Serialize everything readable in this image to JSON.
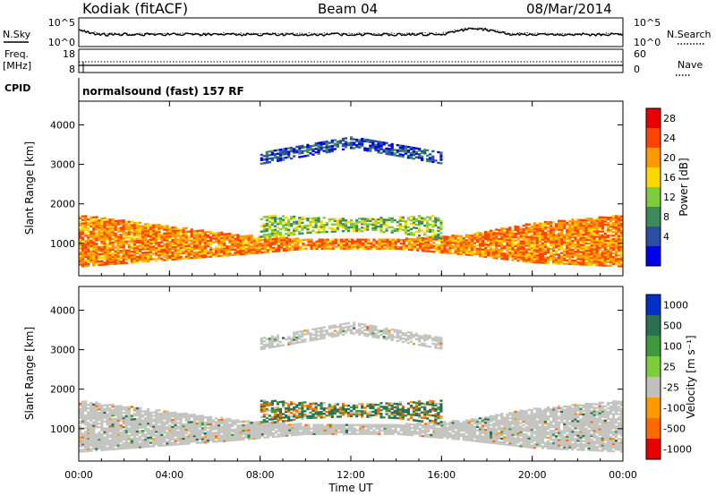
{
  "header": {
    "station": "Kodiak (fitACF)",
    "beam": "Beam 04",
    "date": "08/Mar/2014"
  },
  "top_panels": {
    "nsky_label": "N.Sky",
    "nsearch_label": "N.Search",
    "noise_ticks_left": [
      "10^5",
      "10^0"
    ],
    "noise_ticks_right": [
      "10^5",
      "10^0"
    ],
    "freq_label": "Freq.",
    "freq_unit": "[MHz]",
    "freq_ticks": [
      "18",
      "8"
    ],
    "nave_label": "Nave",
    "nave_ticks": [
      "60",
      "0"
    ],
    "cpid_label": "CPID",
    "cpid_value": "normalsound (fast) 157 RF"
  },
  "colors": {
    "power": [
      "#0000ee",
      "#2a4ea6",
      "#3c8c5a",
      "#7ccc3c",
      "#ffd700",
      "#ff9900",
      "#ff4500",
      "#e80000"
    ],
    "velocity": [
      "#0030c8",
      "#2a7050",
      "#3c9a3c",
      "#7ccc3c",
      "#c0c0c0",
      "#ff9900",
      "#ff6a00",
      "#e80000"
    ],
    "ground_scatter": "#c4c4c0"
  },
  "chart_data": [
    {
      "type": "heatmap",
      "panel": "power",
      "ylabel": "Slant Range [km]",
      "xlabel": "",
      "ylim": [
        180,
        4600
      ],
      "y_ticks": [
        "4000",
        "3000",
        "2000",
        "1000"
      ],
      "x_ticks": [
        "00:00",
        "04:00",
        "08:00",
        "12:00",
        "16:00",
        "20:00",
        "00:00"
      ],
      "colorbar_label": "Power [dB]",
      "colorbar_ticks": [
        "28",
        "24",
        "20",
        "16",
        "12",
        "8",
        "4"
      ],
      "bands": [
        {
          "t": [
            0,
            7,
            10,
            14,
            17,
            20,
            24
          ],
          "r0": [
            400,
            700,
            850,
            850,
            700,
            500,
            400
          ],
          "r1": [
            1700,
            1200,
            1100,
            1100,
            1200,
            1500,
            1700
          ],
          "level": 28
        },
        {
          "t": [
            8,
            10,
            12,
            14,
            16
          ],
          "r0": [
            1100,
            1250,
            1300,
            1250,
            1100
          ],
          "r1": [
            1700,
            1650,
            1600,
            1650,
            1700
          ],
          "level": 20
        },
        {
          "t": [
            8,
            10,
            12,
            14,
            16
          ],
          "r0": [
            3000,
            3200,
            3400,
            3200,
            3000
          ],
          "r1": [
            3300,
            3500,
            3700,
            3500,
            3300
          ],
          "level": 12
        }
      ]
    },
    {
      "type": "heatmap",
      "panel": "velocity",
      "ylabel": "Slant Range [km]",
      "xlabel": "Time UT",
      "ylim": [
        180,
        4600
      ],
      "y_ticks": [
        "4000",
        "3000",
        "2000",
        "1000"
      ],
      "x_ticks": [
        "00:00",
        "04:00",
        "08:00",
        "12:00",
        "16:00",
        "20:00",
        "00:00"
      ],
      "colorbar_label": "Velocity [m s⁻¹]",
      "colorbar_ticks": [
        "1000",
        "500",
        "100",
        "25",
        "-25",
        "-100",
        "-500",
        "-1000"
      ],
      "bands": [
        {
          "t": [
            0,
            7,
            10,
            14,
            17,
            20,
            24
          ],
          "r0": [
            400,
            700,
            850,
            850,
            700,
            500,
            400
          ],
          "r1": [
            1700,
            1200,
            1100,
            1100,
            1200,
            1500,
            1700
          ],
          "level": 0
        },
        {
          "t": [
            8,
            10,
            12,
            14,
            16
          ],
          "r0": [
            1100,
            1250,
            1300,
            1250,
            1100
          ],
          "r1": [
            1700,
            1650,
            1600,
            1650,
            1700
          ],
          "level": 100
        },
        {
          "t": [
            8,
            10,
            12,
            14,
            16
          ],
          "r0": [
            3000,
            3200,
            3400,
            3200,
            3000
          ],
          "r1": [
            3300,
            3500,
            3700,
            3500,
            3300
          ],
          "level": 0
        }
      ]
    }
  ]
}
